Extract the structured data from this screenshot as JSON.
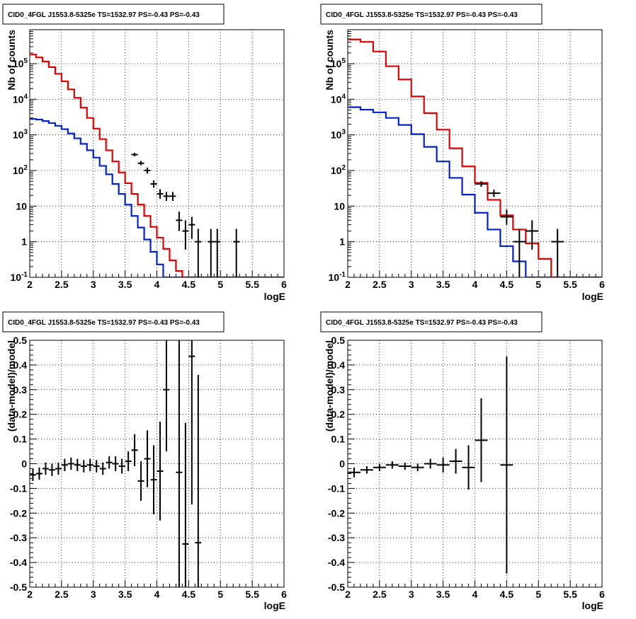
{
  "panel_title": "CID0_4FGL J1553.8-5325e TS=1532.97 PS=-0.43 PS=-0.43",
  "colors": {
    "data": "#000000",
    "model_total": "#e00000",
    "model_source": "#0022cc"
  },
  "chart_data": [
    {
      "id": "counts-fine",
      "type": "line",
      "title": "CID0_4FGL J1553.8-5325e TS=1532.97 PS=-0.43 PS=-0.43",
      "xlabel": "logE",
      "ylabel": "Nb of counts",
      "xlim": [
        2,
        6
      ],
      "ylim": [
        0.1,
        900000
      ],
      "yscale": "log",
      "grid": true,
      "xticks": [
        "2",
        "2.5",
        "3",
        "3.5",
        "4",
        "4.5",
        "5",
        "5.5",
        "6"
      ],
      "yticks": [
        {
          "value": 0.1,
          "label": "10",
          "exp": "-1"
        },
        {
          "value": 1,
          "label": "1",
          "exp": ""
        },
        {
          "value": 10,
          "label": "10",
          "exp": ""
        },
        {
          "value": 100,
          "label": "10",
          "exp": "2"
        },
        {
          "value": 1000,
          "label": "10",
          "exp": "3"
        },
        {
          "value": 10000,
          "label": "10",
          "exp": "4"
        },
        {
          "value": 100000,
          "label": "10",
          "exp": "5"
        }
      ],
      "bin_edges": [
        2.0,
        2.1,
        2.2,
        2.3,
        2.4,
        2.5,
        2.6,
        2.7,
        2.8,
        2.9,
        3.0,
        3.1,
        3.2,
        3.3,
        3.4,
        3.5,
        3.6,
        3.7,
        3.8,
        3.9,
        4.0,
        4.1,
        4.2,
        4.3,
        4.4,
        4.5,
        4.6,
        4.7,
        4.8,
        4.9,
        5.0,
        5.1,
        5.2,
        5.3,
        5.4,
        5.5,
        5.6,
        5.7,
        5.8,
        5.9,
        6.0
      ],
      "series": [
        {
          "name": "model_total",
          "role": "step",
          "values": [
            180000,
            150000,
            115000,
            80000,
            52000,
            32000,
            19000,
            11000,
            5800,
            3000,
            1500,
            760,
            370,
            180,
            88,
            44,
            22,
            11,
            5.3,
            2.6,
            1.3,
            0.63,
            0.3,
            0.15,
            0.1,
            0.1,
            0.1,
            0.1,
            0.1,
            0.1,
            0.1,
            0.1,
            0.1,
            0.1,
            0.1,
            0.1,
            0.1,
            0.1,
            0.1,
            0.1
          ]
        },
        {
          "name": "model_source",
          "role": "step",
          "values": [
            2800,
            2700,
            2450,
            2150,
            1800,
            1450,
            1100,
            800,
            560,
            370,
            230,
            135,
            78,
            42,
            22,
            11,
            5.3,
            2.5,
            1.15,
            0.52,
            0.23,
            0.1,
            0.1,
            0.1,
            0.1,
            0.1,
            0.1,
            0.1,
            0.1,
            0.1,
            0.1,
            0.1,
            0.1,
            0.1,
            0.1,
            0.1,
            0.1,
            0.1,
            0.1,
            0.1
          ]
        },
        {
          "name": "data",
          "role": "points",
          "points": [
            {
              "x": 3.65,
              "y": 280,
              "lo": 250,
              "hi": 315
            },
            {
              "x": 3.75,
              "y": 160,
              "lo": 140,
              "hi": 185
            },
            {
              "x": 3.85,
              "y": 100,
              "lo": 82,
              "hi": 120
            },
            {
              "x": 3.95,
              "y": 42,
              "lo": 33,
              "hi": 53
            },
            {
              "x": 4.05,
              "y": 22,
              "lo": 16,
              "hi": 30
            },
            {
              "x": 4.15,
              "y": 19,
              "lo": 14,
              "hi": 25
            },
            {
              "x": 4.25,
              "y": 19,
              "lo": 14,
              "hi": 25
            },
            {
              "x": 4.35,
              "y": 4,
              "lo": 2,
              "hi": 7
            },
            {
              "x": 4.45,
              "y": 2,
              "lo": 0.6,
              "hi": 4
            },
            {
              "x": 4.55,
              "y": 3,
              "lo": 1.2,
              "hi": 5
            },
            {
              "x": 4.65,
              "y": 1,
              "lo": 0.1,
              "hi": 2.3
            },
            {
              "x": 4.85,
              "y": 1,
              "lo": 0.1,
              "hi": 2.3
            },
            {
              "x": 4.95,
              "y": 1,
              "lo": 0.1,
              "hi": 2.3
            },
            {
              "x": 5.25,
              "y": 1,
              "lo": 0.1,
              "hi": 2.3
            }
          ]
        }
      ]
    },
    {
      "id": "counts-coarse",
      "type": "line",
      "title": "CID0_4FGL J1553.8-5325e TS=1532.97 PS=-0.43 PS=-0.43",
      "xlabel": "logE",
      "ylabel": "Nb of counts",
      "xlim": [
        2,
        6
      ],
      "ylim": [
        0.1,
        900000
      ],
      "yscale": "log",
      "grid": true,
      "xticks": [
        "2",
        "2.5",
        "3",
        "3.5",
        "4",
        "4.5",
        "5",
        "5.5",
        "6"
      ],
      "yticks": [
        {
          "value": 0.1,
          "label": "10",
          "exp": "-1"
        },
        {
          "value": 1,
          "label": "1",
          "exp": ""
        },
        {
          "value": 10,
          "label": "10",
          "exp": ""
        },
        {
          "value": 100,
          "label": "10",
          "exp": "2"
        },
        {
          "value": 1000,
          "label": "10",
          "exp": "3"
        },
        {
          "value": 10000,
          "label": "10",
          "exp": "4"
        },
        {
          "value": 100000,
          "label": "10",
          "exp": "5"
        }
      ],
      "bin_edges": [
        2.0,
        2.2,
        2.4,
        2.6,
        2.8,
        3.0,
        3.2,
        3.4,
        3.6,
        3.8,
        4.0,
        4.2,
        4.4,
        4.6,
        4.8,
        5.0,
        5.2,
        5.4,
        5.6,
        5.8,
        6.0
      ],
      "series": [
        {
          "name": "model_total",
          "role": "step",
          "values": [
            480000,
            410000,
            220000,
            85000,
            36000,
            12000,
            4100,
            1400,
            420,
            130,
            45,
            15,
            5.5,
            2.2,
            0.9,
            0.33,
            0.1,
            0.1,
            0.1,
            0.1
          ]
        },
        {
          "name": "model_source",
          "role": "step",
          "values": [
            6000,
            5100,
            4300,
            3000,
            1900,
            1050,
            460,
            180,
            62,
            21,
            6.5,
            2.2,
            0.75,
            0.28,
            0.1,
            0.1,
            0.1,
            0.1,
            0.1,
            0.1
          ]
        },
        {
          "name": "data",
          "role": "points",
          "points": [
            {
              "x": 4.1,
              "y": 42,
              "lo": 35,
              "hi": 50
            },
            {
              "x": 4.3,
              "y": 23,
              "lo": 18,
              "hi": 29
            },
            {
              "x": 4.5,
              "y": 5,
              "lo": 3,
              "hi": 8
            },
            {
              "x": 4.7,
              "y": 1,
              "lo": 0.1,
              "hi": 2.3
            },
            {
              "x": 4.9,
              "y": 2,
              "lo": 0.6,
              "hi": 4
            },
            {
              "x": 5.3,
              "y": 1,
              "lo": 0.1,
              "hi": 2.3
            }
          ]
        }
      ]
    },
    {
      "id": "residual-fine",
      "type": "scatter",
      "title": "CID0_4FGL J1553.8-5325e TS=1532.97 PS=-0.43 PS=-0.43",
      "xlabel": "logE",
      "ylabel": "(data-model)/model",
      "xlim": [
        2,
        6
      ],
      "ylim": [
        -0.5,
        0.5
      ],
      "yscale": "linear",
      "grid": true,
      "xticks": [
        "2",
        "2.5",
        "3",
        "3.5",
        "4",
        "4.5",
        "5",
        "5.5",
        "6"
      ],
      "yticks": [
        "-0.5",
        "-0.4",
        "-0.3",
        "-0.2",
        "-0.1",
        "0",
        "0.1",
        "0.2",
        "0.3",
        "0.4",
        "0.5"
      ],
      "xerr": 0.05,
      "points": [
        {
          "x": 2.05,
          "y": -0.045,
          "err": 0.025
        },
        {
          "x": 2.15,
          "y": -0.04,
          "err": 0.025
        },
        {
          "x": 2.25,
          "y": -0.02,
          "err": 0.025
        },
        {
          "x": 2.35,
          "y": -0.025,
          "err": 0.025
        },
        {
          "x": 2.45,
          "y": -0.02,
          "err": 0.025
        },
        {
          "x": 2.55,
          "y": -0.005,
          "err": 0.025
        },
        {
          "x": 2.65,
          "y": 0.0,
          "err": 0.025
        },
        {
          "x": 2.75,
          "y": -0.005,
          "err": 0.025
        },
        {
          "x": 2.85,
          "y": -0.01,
          "err": 0.025
        },
        {
          "x": 2.95,
          "y": -0.005,
          "err": 0.025
        },
        {
          "x": 3.05,
          "y": -0.01,
          "err": 0.025
        },
        {
          "x": 3.15,
          "y": -0.02,
          "err": 0.025
        },
        {
          "x": 3.25,
          "y": 0.005,
          "err": 0.025
        },
        {
          "x": 3.35,
          "y": 0.0,
          "err": 0.03
        },
        {
          "x": 3.45,
          "y": -0.01,
          "err": 0.03
        },
        {
          "x": 3.55,
          "y": 0.01,
          "err": 0.04
        },
        {
          "x": 3.65,
          "y": 0.055,
          "err": 0.065
        },
        {
          "x": 3.75,
          "y": -0.07,
          "err": 0.08
        },
        {
          "x": 3.85,
          "y": 0.02,
          "err": 0.115
        },
        {
          "x": 3.95,
          "y": -0.065,
          "err": 0.14
        },
        {
          "x": 4.05,
          "y": -0.03,
          "err": 0.2
        },
        {
          "x": 4.15,
          "y": 0.3,
          "err": 0.25
        },
        {
          "x": 4.35,
          "y": -0.035,
          "err": 0.6
        },
        {
          "x": 4.45,
          "y": -0.325,
          "err": 0.49
        },
        {
          "x": 4.55,
          "y": 0.435,
          "err": 0.6
        },
        {
          "x": 4.65,
          "y": -0.32,
          "err": 0.68
        }
      ]
    },
    {
      "id": "residual-coarse",
      "type": "scatter",
      "title": "CID0_4FGL J1553.8-5325e TS=1532.97 PS=-0.43 PS=-0.43",
      "xlabel": "logE",
      "ylabel": "(data-model)/model",
      "xlim": [
        2,
        6
      ],
      "ylim": [
        -0.5,
        0.5
      ],
      "yscale": "linear",
      "grid": true,
      "xticks": [
        "2",
        "2.5",
        "3",
        "3.5",
        "4",
        "4.5",
        "5",
        "5.5",
        "6"
      ],
      "yticks": [
        "-0.5",
        "-0.4",
        "-0.3",
        "-0.2",
        "-0.1",
        "0",
        "0.1",
        "0.2",
        "0.3",
        "0.4",
        "0.5"
      ],
      "xerr": 0.1,
      "points": [
        {
          "x": 2.1,
          "y": -0.035,
          "err": 0.02
        },
        {
          "x": 2.3,
          "y": -0.025,
          "err": 0.015
        },
        {
          "x": 2.5,
          "y": -0.015,
          "err": 0.015
        },
        {
          "x": 2.7,
          "y": -0.005,
          "err": 0.015
        },
        {
          "x": 2.9,
          "y": -0.01,
          "err": 0.015
        },
        {
          "x": 3.1,
          "y": -0.015,
          "err": 0.015
        },
        {
          "x": 3.3,
          "y": 0.0,
          "err": 0.02
        },
        {
          "x": 3.5,
          "y": -0.005,
          "err": 0.03
        },
        {
          "x": 3.7,
          "y": 0.01,
          "err": 0.05
        },
        {
          "x": 3.9,
          "y": -0.015,
          "err": 0.09
        },
        {
          "x": 4.1,
          "y": 0.095,
          "err": 0.17
        },
        {
          "x": 4.5,
          "y": -0.005,
          "err": 0.44
        }
      ]
    }
  ]
}
